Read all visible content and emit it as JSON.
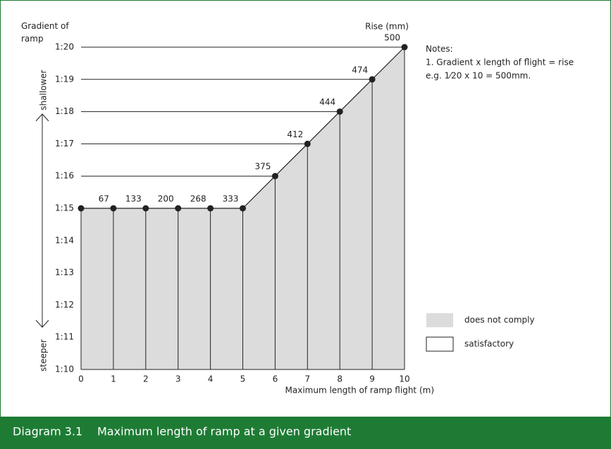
{
  "chart_data": {
    "type": "area",
    "y_label": "Gradient of ramp",
    "x_label": "Maximum length of ramp flight (m)",
    "x": [
      0,
      1,
      2,
      3,
      4,
      5,
      6,
      7,
      8,
      9,
      10
    ],
    "values": [
      15,
      15,
      15,
      15,
      15,
      15,
      16,
      17,
      18,
      19,
      20
    ],
    "color": "#dcdcdc",
    "xlim": [
      0,
      10
    ],
    "xticks": [
      0,
      1,
      2,
      3,
      4,
      5,
      6,
      7,
      8,
      9,
      10
    ],
    "ylim": [
      10,
      20
    ],
    "yticks": [
      {
        "value": 10,
        "label": "1:10"
      },
      {
        "value": 11,
        "label": "1:11"
      },
      {
        "value": 12,
        "label": "1:12"
      },
      {
        "value": 13,
        "label": "1:13"
      },
      {
        "value": 14,
        "label": "1:14"
      },
      {
        "value": 15,
        "label": "1:15"
      },
      {
        "value": 16,
        "label": "1:16"
      },
      {
        "value": 17,
        "label": "1:17"
      },
      {
        "value": 18,
        "label": "1:18"
      },
      {
        "value": 19,
        "label": "1:19"
      },
      {
        "value": 20,
        "label": "1:20"
      }
    ],
    "rise": {
      "label": "Rise (mm)",
      "values": [
        null,
        67,
        133,
        200,
        268,
        333,
        375,
        412,
        444,
        474,
        500
      ]
    },
    "arrow_labels": {
      "top": "shallower",
      "bottom": "steeper"
    },
    "notes": [
      "Notes:",
      "1. Gradient x length of flight = rise",
      "e.g. 1⁄20 x 10 = 500mm."
    ],
    "legend": [
      {
        "label": "does not comply",
        "color": "#dcdcdc"
      },
      {
        "label": "satisfactory",
        "color": "#ffffff"
      }
    ]
  },
  "caption": {
    "number": "Diagram 3.1",
    "text": "Maximum length of ramp at a given gradient"
  }
}
